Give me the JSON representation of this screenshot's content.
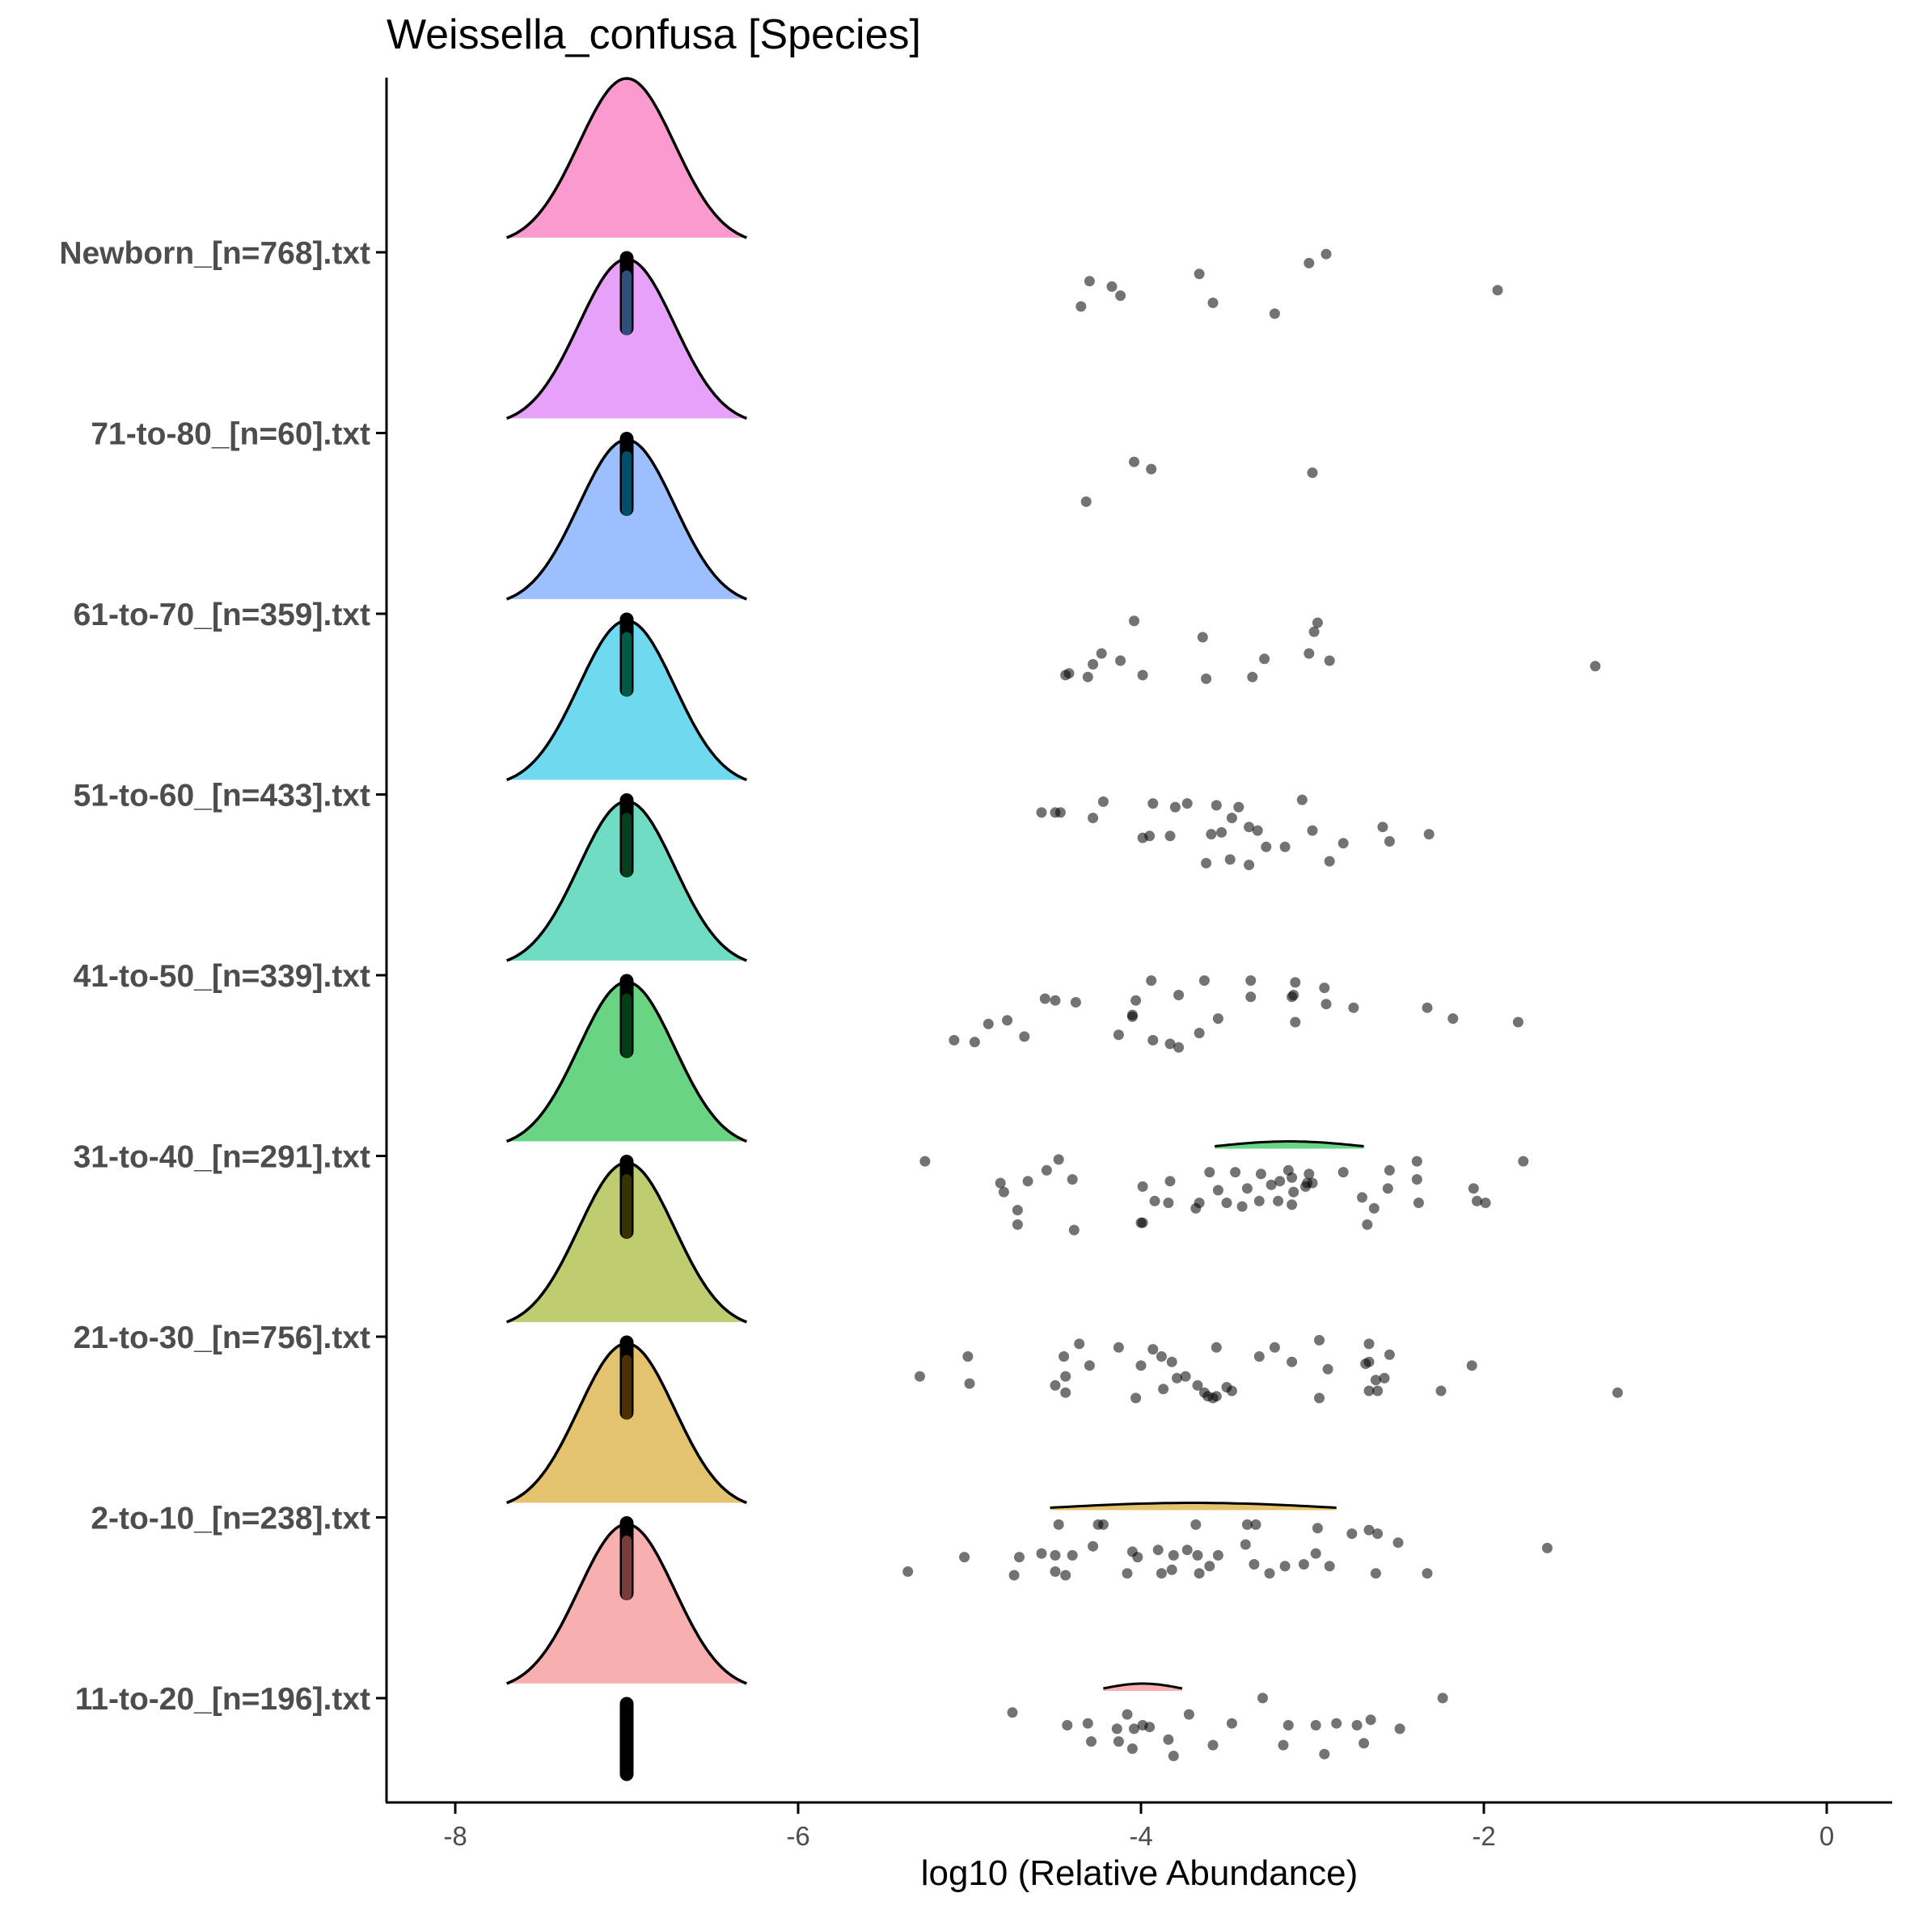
{
  "chart_data": {
    "type": "ridgeline",
    "title": "Weissella_confusa [Species]",
    "xlabel": "log10 (Relative Abundance)",
    "ylabel": "",
    "xlim": [
      -8.4,
      0.4
    ],
    "x_ticks": [
      "-8",
      "-6",
      "-4",
      "-2",
      "0"
    ],
    "x_tick_values": [
      -8,
      -6,
      -4,
      -2,
      0
    ],
    "grid": false,
    "legend": "none",
    "zero_value": -7,
    "groups": [
      {
        "label": "Newborn_[n=768].txt",
        "color": "#FB9ACE",
        "median_color": "#703357",
        "points": [
          [
            -4.3,
            0.2
          ],
          [
            -3.66,
            0.16
          ],
          [
            -3.02,
            0.1
          ],
          [
            -2.92,
            0.05
          ],
          [
            -4.17,
            0.23
          ],
          [
            -4.12,
            0.28
          ],
          [
            -4.35,
            0.34
          ],
          [
            -3.58,
            0.32
          ],
          [
            -3.22,
            0.38
          ],
          [
            -1.92,
            0.25
          ]
        ]
      },
      {
        "label": "71-to-80_[n=60].txt",
        "color": "#E6A2F9",
        "median_color": "#2F4F7A",
        "points": [
          [
            -4.04,
            0.2
          ],
          [
            -3.94,
            0.24
          ],
          [
            -3.0,
            0.26
          ],
          [
            -4.32,
            0.42
          ]
        ]
      },
      {
        "label": "61-to-70_[n=359].txt",
        "color": "#9CC0FF",
        "median_color": "#004E67",
        "points": [
          [
            -4.04,
            0.08
          ],
          [
            -3.64,
            0.17
          ],
          [
            -2.97,
            0.09
          ],
          [
            -2.99,
            0.14
          ],
          [
            -4.23,
            0.26
          ],
          [
            -4.28,
            0.32
          ],
          [
            -4.12,
            0.3
          ],
          [
            -3.28,
            0.29
          ],
          [
            -3.02,
            0.26
          ],
          [
            -2.9,
            0.3
          ],
          [
            -4.44,
            0.38
          ],
          [
            -4.42,
            0.37
          ],
          [
            -4.31,
            0.39
          ],
          [
            -3.99,
            0.38
          ],
          [
            -3.62,
            0.4
          ],
          [
            -3.35,
            0.39
          ],
          [
            -1.35,
            0.33
          ]
        ]
      },
      {
        "label": "51-to-60_[n=433].txt",
        "color": "#6FD9F0",
        "median_color": "#005A45",
        "points": [
          [
            -4.58,
            0.14
          ],
          [
            -4.5,
            0.14
          ],
          [
            -4.47,
            0.14
          ],
          [
            -4.22,
            0.08
          ],
          [
            -3.93,
            0.09
          ],
          [
            -3.8,
            0.11
          ],
          [
            -3.73,
            0.09
          ],
          [
            -3.56,
            0.1
          ],
          [
            -3.43,
            0.11
          ],
          [
            -3.06,
            0.07
          ],
          [
            -4.28,
            0.17
          ],
          [
            -3.47,
            0.17
          ],
          [
            -3.59,
            0.26
          ],
          [
            -3.53,
            0.25
          ],
          [
            -3.37,
            0.22
          ],
          [
            -3.32,
            0.24
          ],
          [
            -3.0,
            0.24
          ],
          [
            -3.83,
            0.27
          ],
          [
            -3.99,
            0.28
          ],
          [
            -3.95,
            0.27
          ],
          [
            -3.62,
            0.42
          ],
          [
            -3.48,
            0.4
          ],
          [
            -3.37,
            0.43
          ],
          [
            -3.27,
            0.33
          ],
          [
            -3.16,
            0.33
          ],
          [
            -2.9,
            0.41
          ],
          [
            -2.82,
            0.31
          ],
          [
            -2.59,
            0.22
          ],
          [
            -2.55,
            0.3
          ],
          [
            -2.32,
            0.26
          ]
        ]
      },
      {
        "label": "41-to-50_[n=339].txt",
        "color": "#70DCC4",
        "median_color": "#073F1E",
        "points": [
          [
            -3.94,
            0.07
          ],
          [
            -3.63,
            0.07
          ],
          [
            -3.36,
            0.07
          ],
          [
            -3.1,
            0.08
          ],
          [
            -2.93,
            0.11
          ],
          [
            -4.5,
            0.18
          ],
          [
            -4.38,
            0.19
          ],
          [
            -4.56,
            0.17
          ],
          [
            -3.78,
            0.15
          ],
          [
            -3.36,
            0.16
          ],
          [
            -3.11,
            0.15
          ],
          [
            -3.12,
            0.16
          ],
          [
            -2.92,
            0.2
          ],
          [
            -2.76,
            0.22
          ],
          [
            -4.03,
            0.18
          ],
          [
            -4.05,
            0.26
          ],
          [
            -4.05,
            0.27
          ],
          [
            -3.55,
            0.28
          ],
          [
            -4.78,
            0.29
          ],
          [
            -4.89,
            0.31
          ],
          [
            -4.68,
            0.38
          ],
          [
            -3.1,
            0.3
          ],
          [
            -2.33,
            0.22
          ],
          [
            -2.18,
            0.28
          ],
          [
            -1.8,
            0.3
          ],
          [
            -5.09,
            0.4
          ],
          [
            -4.97,
            0.41
          ],
          [
            -4.13,
            0.37
          ],
          [
            -3.93,
            0.4
          ],
          [
            -3.83,
            0.42
          ],
          [
            -3.66,
            0.36
          ],
          [
            -3.78,
            0.44
          ]
        ]
      },
      {
        "label": "31-to-40_[n=291].txt",
        "color": "#69D583",
        "median_color": "#003C14",
        "points": [
          [
            -5.26,
            0.07
          ],
          [
            -4.48,
            0.06
          ],
          [
            -4.55,
            0.12
          ],
          [
            -4.4,
            0.17
          ],
          [
            -4.82,
            0.19
          ],
          [
            -4.66,
            0.18
          ],
          [
            -3.83,
            0.18
          ],
          [
            -3.99,
            0.21
          ],
          [
            -3.6,
            0.13
          ],
          [
            -3.3,
            0.14
          ],
          [
            -3.45,
            0.13
          ],
          [
            -3.14,
            0.12
          ],
          [
            -3.02,
            0.14
          ],
          [
            -3.0,
            0.19
          ],
          [
            -2.82,
            0.13
          ],
          [
            -2.55,
            0.12
          ],
          [
            -2.39,
            0.07
          ],
          [
            -2.39,
            0.17
          ],
          [
            -3.19,
            0.18
          ],
          [
            -3.24,
            0.2
          ],
          [
            -3.03,
            0.19
          ],
          [
            -3.04,
            0.21
          ],
          [
            -3.12,
            0.16
          ],
          [
            -3.38,
            0.22
          ],
          [
            -3.55,
            0.23
          ],
          [
            -3.11,
            0.24
          ],
          [
            -2.56,
            0.22
          ],
          [
            -2.71,
            0.27
          ],
          [
            -4.8,
            0.24
          ],
          [
            -3.92,
            0.29
          ],
          [
            -3.84,
            0.3
          ],
          [
            -3.31,
            0.29
          ],
          [
            -3.12,
            0.31
          ],
          [
            -3.5,
            0.3
          ],
          [
            -3.66,
            0.3
          ],
          [
            -3.68,
            0.33
          ],
          [
            -3.41,
            0.32
          ],
          [
            -3.2,
            0.29
          ],
          [
            -2.64,
            0.33
          ],
          [
            -2.38,
            0.3
          ],
          [
            -2.06,
            0.22
          ],
          [
            -2.04,
            0.29
          ],
          [
            -1.99,
            0.3
          ],
          [
            -1.77,
            0.07
          ],
          [
            -4.72,
            0.34
          ],
          [
            -4.72,
            0.42
          ],
          [
            -4.39,
            0.45
          ],
          [
            -4.0,
            0.41
          ],
          [
            -3.99,
            0.41
          ],
          [
            -2.68,
            0.42
          ]
        ]
      },
      {
        "label": "21-to-30_[n=756].txt",
        "color": "#BFCD70",
        "median_color": "#373200",
        "points": [
          [
            -5.01,
            0.15
          ],
          [
            -4.36,
            0.08
          ],
          [
            -4.13,
            0.1
          ],
          [
            -3.93,
            0.11
          ],
          [
            -3.56,
            0.1
          ],
          [
            -3.22,
            0.1
          ],
          [
            -2.96,
            0.06
          ],
          [
            -2.67,
            0.08
          ],
          [
            -2.55,
            0.14
          ],
          [
            -4.45,
            0.15
          ],
          [
            -3.88,
            0.15
          ],
          [
            -3.82,
            0.18
          ],
          [
            -3.31,
            0.15
          ],
          [
            -3.12,
            0.18
          ],
          [
            -2.67,
            0.18
          ],
          [
            -2.69,
            0.19
          ],
          [
            -2.91,
            0.22
          ],
          [
            -4.3,
            0.2
          ],
          [
            -4.0,
            0.2
          ],
          [
            -5.29,
            0.26
          ],
          [
            -5.0,
            0.3
          ],
          [
            -4.44,
            0.26
          ],
          [
            -4.5,
            0.31
          ],
          [
            -4.44,
            0.35
          ],
          [
            -3.74,
            0.26
          ],
          [
            -3.79,
            0.27
          ],
          [
            -3.67,
            0.31
          ],
          [
            -3.63,
            0.35
          ],
          [
            -3.56,
            0.37
          ],
          [
            -3.61,
            0.37
          ],
          [
            -3.5,
            0.32
          ],
          [
            -3.58,
            0.38
          ],
          [
            -3.47,
            0.34
          ],
          [
            -3.87,
            0.33
          ],
          [
            -4.03,
            0.38
          ],
          [
            -2.67,
            0.34
          ],
          [
            -2.63,
            0.28
          ],
          [
            -2.58,
            0.27
          ],
          [
            -2.62,
            0.34
          ],
          [
            -2.96,
            0.38
          ],
          [
            -2.25,
            0.34
          ],
          [
            -2.07,
            0.2
          ],
          [
            -1.22,
            0.35
          ]
        ]
      },
      {
        "label": "2-to-10_[n=238].txt",
        "color": "#E4C36F",
        "median_color": "#4C3000",
        "points": [
          [
            -4.48,
            0.08
          ],
          [
            -4.22,
            0.08
          ],
          [
            -4.25,
            0.08
          ],
          [
            -3.68,
            0.08
          ],
          [
            -3.38,
            0.08
          ],
          [
            -3.33,
            0.08
          ],
          [
            -2.97,
            0.1
          ],
          [
            -2.67,
            0.11
          ],
          [
            -2.77,
            0.13
          ],
          [
            -2.62,
            0.13
          ],
          [
            -2.5,
            0.18
          ],
          [
            -3.39,
            0.19
          ],
          [
            -3.73,
            0.22
          ],
          [
            -3.81,
            0.25
          ],
          [
            -3.9,
            0.22
          ],
          [
            -4.05,
            0.23
          ],
          [
            -4.28,
            0.2
          ],
          [
            -4.5,
            0.25
          ],
          [
            -4.58,
            0.24
          ],
          [
            -4.4,
            0.25
          ],
          [
            -4.71,
            0.26
          ],
          [
            -5.03,
            0.26
          ],
          [
            -3.67,
            0.25
          ],
          [
            -3.55,
            0.25
          ],
          [
            -3.34,
            0.3
          ],
          [
            -3.16,
            0.31
          ],
          [
            -3.05,
            0.3
          ],
          [
            -2.98,
            0.24
          ],
          [
            -2.9,
            0.31
          ],
          [
            -3.6,
            0.31
          ],
          [
            -3.82,
            0.33
          ],
          [
            -3.88,
            0.35
          ],
          [
            -3.66,
            0.35
          ],
          [
            -3.25,
            0.35
          ],
          [
            -4.08,
            0.35
          ],
          [
            -4.5,
            0.34
          ],
          [
            -4.44,
            0.36
          ],
          [
            -4.74,
            0.36
          ],
          [
            -5.36,
            0.34
          ],
          [
            -4.02,
            0.26
          ],
          [
            -2.63,
            0.35
          ],
          [
            -2.33,
            0.35
          ],
          [
            -1.63,
            0.21
          ]
        ]
      },
      {
        "label": "11-to-20_[n=196].txt",
        "color": "#F7B0AF",
        "median_color": "#783C3C",
        "points": [
          [
            -4.75,
            0.12
          ],
          [
            -4.08,
            0.13
          ],
          [
            -3.72,
            0.13
          ],
          [
            -3.29,
            0.04
          ],
          [
            -4.43,
            0.19
          ],
          [
            -4.31,
            0.18
          ],
          [
            -4.14,
            0.21
          ],
          [
            -4.04,
            0.21
          ],
          [
            -3.99,
            0.19
          ],
          [
            -3.95,
            0.2
          ],
          [
            -3.47,
            0.18
          ],
          [
            -3.14,
            0.19
          ],
          [
            -2.98,
            0.19
          ],
          [
            -2.86,
            0.18
          ],
          [
            -2.74,
            0.19
          ],
          [
            -2.66,
            0.16
          ],
          [
            -2.49,
            0.21
          ],
          [
            -2.24,
            0.04
          ],
          [
            -4.29,
            0.28
          ],
          [
            -4.13,
            0.28
          ],
          [
            -4.05,
            0.32
          ],
          [
            -3.84,
            0.27
          ],
          [
            -3.81,
            0.36
          ],
          [
            -3.58,
            0.3
          ],
          [
            -3.17,
            0.3
          ],
          [
            -2.93,
            0.35
          ],
          [
            -2.7,
            0.29
          ]
        ]
      }
    ],
    "small_ridges": [
      {
        "group": "31-to-40_[n=291].txt",
        "x_range": [
          -3.57,
          -2.7
        ]
      },
      {
        "group": "2-to-10_[n=238].txt",
        "x_range": [
          -4.53,
          -2.86
        ]
      },
      {
        "group": "11-to-20_[n=196].txt",
        "x_range": [
          -4.22,
          -3.76
        ]
      }
    ]
  }
}
